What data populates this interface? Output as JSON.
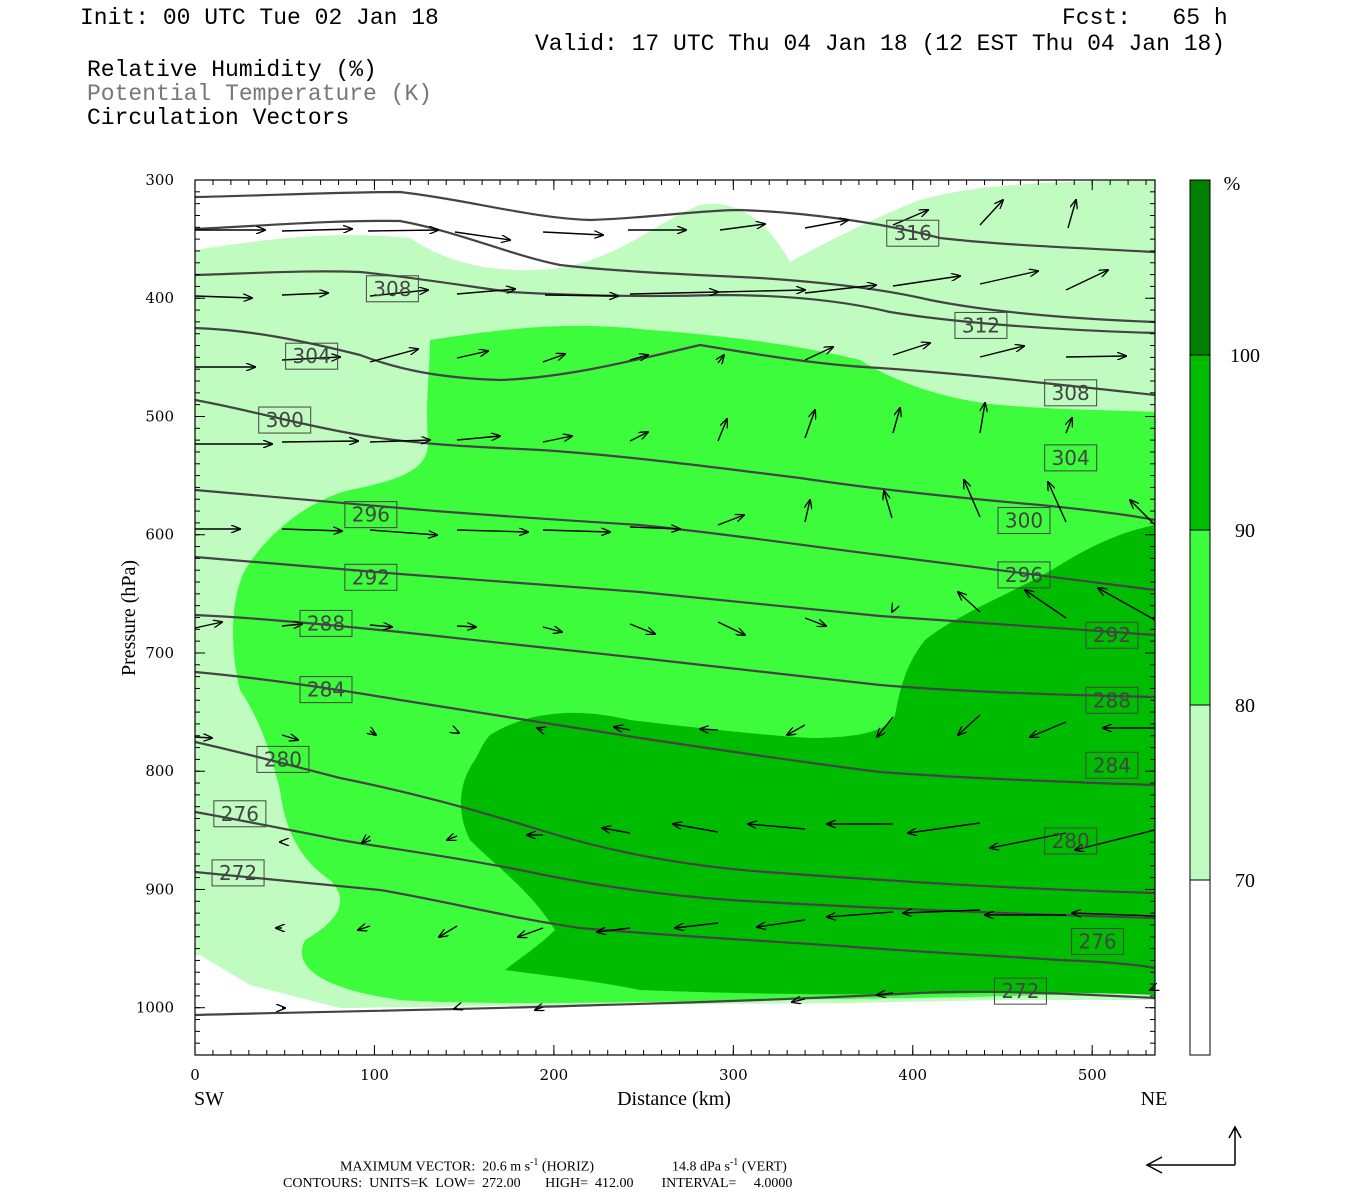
{
  "header": {
    "init": "Init: 00 UTC Tue 02 Jan 18",
    "fcst": "Fcst:   65 h",
    "valid": "Valid: 17 UTC Thu 04 Jan 18 (12 EST Thu 04 Jan 18)"
  },
  "legend": {
    "rh": "Relative Humidity (%)",
    "theta": "Potential Temperature (K)",
    "circulation": "Circulation Vectors"
  },
  "footer": {
    "max_vector": "MAXIMUM VECTOR:  20.6 m s",
    "max_vector_sup": "-1",
    "max_vector_horiz": " (HORIZ)",
    "max_vector_vert_value": "14.8 dPa s",
    "max_vector_vert_sup": "-1",
    "max_vector_vert": " (VERT)",
    "contours": "CONTOURS:  UNITS=K  LOW=  272.00       HIGH=  412.00        INTERVAL=     4.0000"
  },
  "colors": {
    "rh_70": "#c0fcc0",
    "rh_80": "#3cfc3c",
    "rh_90": "#00bc00",
    "rh_100": "#008000",
    "theta_line": "#444444"
  },
  "chart_data": {
    "type": "cross-section",
    "xlabel": "Distance (km)",
    "ylabel": "Pressure (hPa)",
    "xlim": [
      0,
      535
    ],
    "ylim": [
      1040,
      300
    ],
    "x_ticks": [
      "0",
      "100",
      "200",
      "300",
      "400",
      "500"
    ],
    "y_ticks": [
      "300",
      "400",
      "500",
      "600",
      "700",
      "800",
      "900",
      "1000"
    ],
    "x_end_labels": {
      "left": "SW",
      "right": "NE"
    },
    "colorbar": {
      "unit": "%",
      "levels": [
        "70",
        "80",
        "90",
        "100"
      ]
    },
    "theta_contour_labels": [
      {
        "label": "316",
        "x": 400,
        "p": 345
      },
      {
        "label": "308",
        "x": 110,
        "p": 392
      },
      {
        "label": "312",
        "x": 438,
        "p": 423
      },
      {
        "label": "304",
        "x": 65,
        "p": 449
      },
      {
        "label": "308",
        "x": 488,
        "p": 480
      },
      {
        "label": "300",
        "x": 50,
        "p": 503
      },
      {
        "label": "304",
        "x": 488,
        "p": 535
      },
      {
        "label": "296",
        "x": 98,
        "p": 583
      },
      {
        "label": "300",
        "x": 462,
        "p": 588
      },
      {
        "label": "292",
        "x": 98,
        "p": 636
      },
      {
        "label": "296",
        "x": 462,
        "p": 634
      },
      {
        "label": "288",
        "x": 73,
        "p": 675
      },
      {
        "label": "292",
        "x": 511,
        "p": 685
      },
      {
        "label": "284",
        "x": 73,
        "p": 731
      },
      {
        "label": "288",
        "x": 511,
        "p": 740
      },
      {
        "label": "280",
        "x": 49,
        "p": 790
      },
      {
        "label": "284",
        "x": 511,
        "p": 795
      },
      {
        "label": "276",
        "x": 25,
        "p": 836
      },
      {
        "label": "280",
        "x": 488,
        "p": 859
      },
      {
        "label": "272",
        "x": 24,
        "p": 886
      },
      {
        "label": "276",
        "x": 503,
        "p": 944
      },
      {
        "label": "272",
        "x": 460,
        "p": 986
      }
    ]
  }
}
